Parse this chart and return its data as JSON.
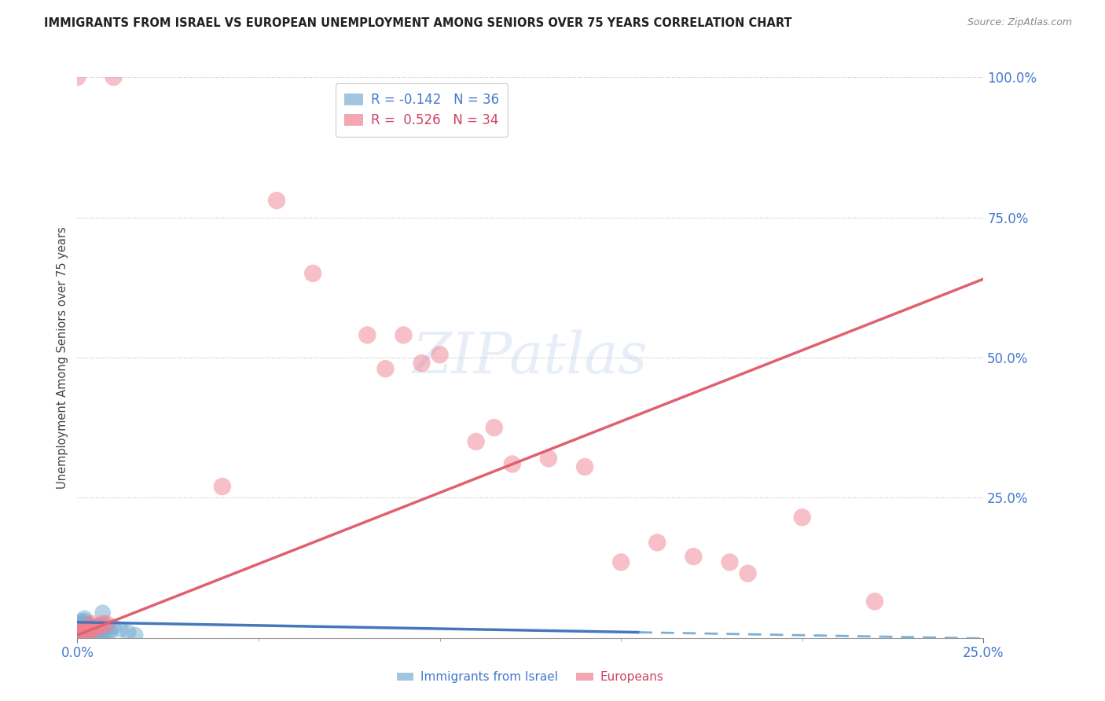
{
  "title": "IMMIGRANTS FROM ISRAEL VS EUROPEAN UNEMPLOYMENT AMONG SENIORS OVER 75 YEARS CORRELATION CHART",
  "source": "Source: ZipAtlas.com",
  "ylabel": "Unemployment Among Seniors over 75 years",
  "legend_label1": "Immigrants from Israel",
  "legend_label2": "Europeans",
  "xlim": [
    0.0,
    0.25
  ],
  "ylim": [
    0.0,
    1.0
  ],
  "blue_color": "#7BAFD4",
  "pink_color": "#F08090",
  "israel_points": [
    [
      0.001,
      0.01
    ],
    [
      0.001,
      0.015
    ],
    [
      0.001,
      0.02
    ],
    [
      0.001,
      0.025
    ],
    [
      0.001,
      0.03
    ],
    [
      0.002,
      0.005
    ],
    [
      0.002,
      0.01
    ],
    [
      0.002,
      0.015
    ],
    [
      0.002,
      0.02
    ],
    [
      0.002,
      0.025
    ],
    [
      0.002,
      0.03
    ],
    [
      0.002,
      0.035
    ],
    [
      0.003,
      0.005
    ],
    [
      0.003,
      0.01
    ],
    [
      0.003,
      0.015
    ],
    [
      0.003,
      0.02
    ],
    [
      0.003,
      0.025
    ],
    [
      0.004,
      0.005
    ],
    [
      0.004,
      0.01
    ],
    [
      0.004,
      0.015
    ],
    [
      0.004,
      0.02
    ],
    [
      0.005,
      0.005
    ],
    [
      0.005,
      0.01
    ],
    [
      0.005,
      0.015
    ],
    [
      0.006,
      0.005
    ],
    [
      0.006,
      0.01
    ],
    [
      0.006,
      0.015
    ],
    [
      0.007,
      0.005
    ],
    [
      0.007,
      0.045
    ],
    [
      0.008,
      0.005
    ],
    [
      0.008,
      0.02
    ],
    [
      0.009,
      0.01
    ],
    [
      0.01,
      0.02
    ],
    [
      0.012,
      0.015
    ],
    [
      0.014,
      0.01
    ],
    [
      0.016,
      0.005
    ]
  ],
  "europe_points": [
    [
      0.001,
      0.01
    ],
    [
      0.001,
      0.015
    ],
    [
      0.002,
      0.01
    ],
    [
      0.002,
      0.015
    ],
    [
      0.003,
      0.01
    ],
    [
      0.003,
      0.02
    ],
    [
      0.004,
      0.015
    ],
    [
      0.004,
      0.025
    ],
    [
      0.005,
      0.02
    ],
    [
      0.006,
      0.02
    ],
    [
      0.007,
      0.025
    ],
    [
      0.008,
      0.025
    ],
    [
      0.04,
      0.27
    ],
    [
      0.055,
      0.78
    ],
    [
      0.065,
      0.65
    ],
    [
      0.08,
      0.54
    ],
    [
      0.085,
      0.48
    ],
    [
      0.09,
      0.54
    ],
    [
      0.095,
      0.49
    ],
    [
      0.1,
      0.505
    ],
    [
      0.11,
      0.35
    ],
    [
      0.115,
      0.375
    ],
    [
      0.12,
      0.31
    ],
    [
      0.13,
      0.32
    ],
    [
      0.14,
      0.305
    ],
    [
      0.15,
      0.135
    ],
    [
      0.16,
      0.17
    ],
    [
      0.17,
      0.145
    ],
    [
      0.18,
      0.135
    ],
    [
      0.185,
      0.115
    ],
    [
      0.0,
      1.0
    ],
    [
      0.01,
      1.0
    ],
    [
      0.2,
      0.215
    ],
    [
      0.22,
      0.065
    ]
  ],
  "israel_line": {
    "x0": 0.0,
    "y0": 0.028,
    "x1": 0.155,
    "y1": 0.01
  },
  "israel_line_dashed": {
    "x0": 0.155,
    "y0": 0.01,
    "x1": 0.25,
    "y1": -0.001
  },
  "europe_line": {
    "x0": 0.0,
    "y0": 0.005,
    "x1": 0.25,
    "y1": 0.64
  }
}
